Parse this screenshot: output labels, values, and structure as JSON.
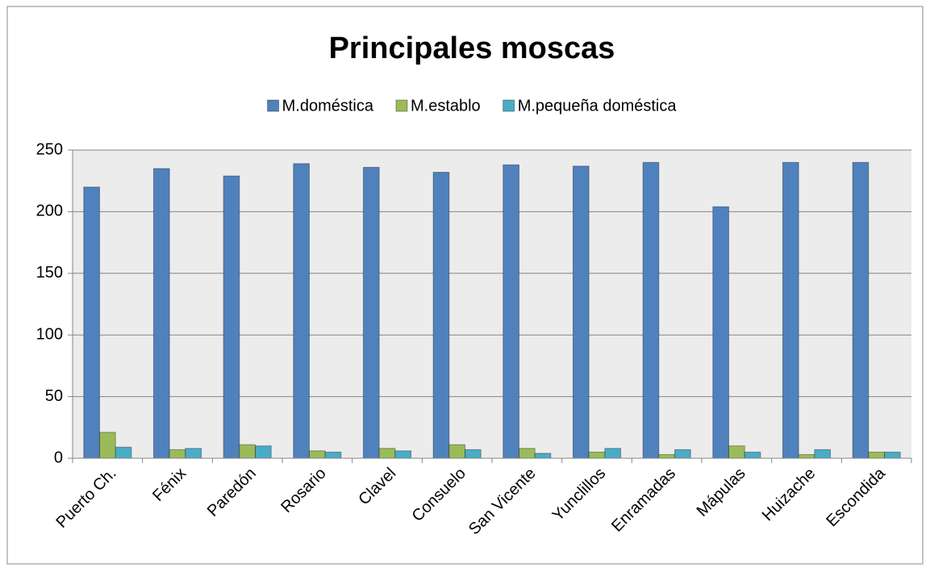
{
  "chart_data": {
    "type": "bar",
    "title": "Principales moscas",
    "categories": [
      "Puerto Ch.",
      "Fénix",
      "Paredón",
      "Rosario",
      "Clavel",
      "Consuelo",
      "San Vicente",
      "Yunclillos",
      "Enramadas",
      "Mápulas",
      "Huizache",
      "Escondida"
    ],
    "series": [
      {
        "name": "M.doméstica",
        "color": "#4f81bd",
        "values": [
          220,
          235,
          229,
          239,
          236,
          232,
          238,
          237,
          240,
          204,
          240,
          240
        ]
      },
      {
        "name": "M.establo",
        "color": "#9bbb59",
        "values": [
          21,
          7,
          11,
          6,
          8,
          11,
          8,
          5,
          3,
          10,
          3,
          5
        ]
      },
      {
        "name": "M.pequeña doméstica",
        "color": "#4bacc6",
        "values": [
          9,
          8,
          10,
          5,
          6,
          7,
          4,
          8,
          7,
          5,
          7,
          5
        ]
      }
    ],
    "ylim": [
      0,
      250
    ],
    "yticks": [
      0,
      50,
      100,
      150,
      200,
      250
    ],
    "grid": true,
    "legend": "top"
  }
}
